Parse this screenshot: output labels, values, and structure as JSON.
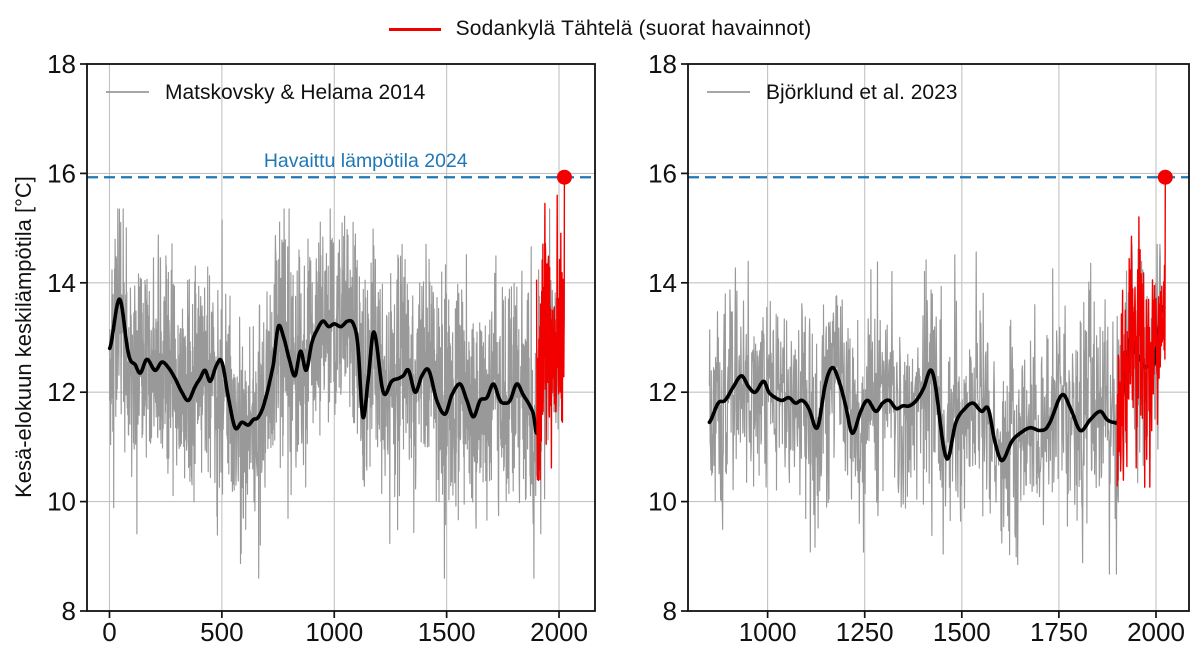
{
  "figure": {
    "top_legend": {
      "label": "Sodankylä Tähtelä (suorat havainnot)",
      "color": "#f20000"
    },
    "ylabel": "Kesä-elokuun keskilämpötila [°C]",
    "colors": {
      "observed_red": "#f20000",
      "threshold_blue": "#1f77b4",
      "reconstruction_gray": "#999999",
      "smoothed_black": "#000000",
      "grid": "#c3c3c3",
      "axis": "#111111"
    }
  },
  "chart_data": [
    {
      "type": "line",
      "panel": "left",
      "legend": "Matskovsky & Helama 2014",
      "xlim": [
        -100,
        2160
      ],
      "ylim": [
        8,
        18
      ],
      "xticks": [
        0,
        500,
        1000,
        1500,
        2000
      ],
      "yticks": [
        8,
        10,
        12,
        14,
        16,
        18
      ],
      "grid": true,
      "threshold_line": {
        "value": 15.93,
        "label": "Havaittu lämpötila 2024",
        "label_visible": true,
        "label_year": 1140
      },
      "observed_2024": {
        "year": 2024,
        "value": 15.93
      },
      "series": [
        {
          "name": "Matskovsky & Helama 2014 (annual)",
          "role": "recon-annual",
          "color": "#999999",
          "start": 1,
          "end": 2005,
          "noise_sd": 1.0,
          "clamp": [
            8.6,
            15.35
          ],
          "seed": 42,
          "trend_ref": "smoothed"
        },
        {
          "name": "smoothed 15-yr mean",
          "role": "smoothed",
          "color": "#000000",
          "anchors": [
            [
              1,
              12.8
            ],
            [
              45,
              13.7
            ],
            [
              85,
              12.7
            ],
            [
              115,
              12.5
            ],
            [
              137,
              12.35
            ],
            [
              166,
              12.6
            ],
            [
              203,
              12.4
            ],
            [
              233,
              12.55
            ],
            [
              262,
              12.45
            ],
            [
              292,
              12.25
            ],
            [
              322,
              12.0
            ],
            [
              351,
              11.85
            ],
            [
              381,
              12.1
            ],
            [
              403,
              12.25
            ],
            [
              425,
              12.4
            ],
            [
              448,
              12.2
            ],
            [
              477,
              12.5
            ],
            [
              500,
              12.55
            ],
            [
              529,
              11.9
            ],
            [
              559,
              11.35
            ],
            [
              589,
              11.45
            ],
            [
              618,
              11.4
            ],
            [
              640,
              11.5
            ],
            [
              663,
              11.55
            ],
            [
              692,
              11.85
            ],
            [
              729,
              12.5
            ],
            [
              751,
              13.2
            ],
            [
              775,
              13.0
            ],
            [
              800,
              12.6
            ],
            [
              825,
              12.3
            ],
            [
              850,
              12.75
            ],
            [
              875,
              12.4
            ],
            [
              900,
              12.9
            ],
            [
              925,
              13.15
            ],
            [
              950,
              13.3
            ],
            [
              975,
              13.2
            ],
            [
              1000,
              13.25
            ],
            [
              1030,
              13.2
            ],
            [
              1060,
              13.3
            ],
            [
              1085,
              13.25
            ],
            [
              1105,
              12.85
            ],
            [
              1127,
              11.55
            ],
            [
              1150,
              12.2
            ],
            [
              1176,
              13.1
            ],
            [
              1218,
              12.0
            ],
            [
              1256,
              12.2
            ],
            [
              1285,
              12.25
            ],
            [
              1307,
              12.3
            ],
            [
              1330,
              12.4
            ],
            [
              1360,
              12.0
            ],
            [
              1390,
              12.3
            ],
            [
              1420,
              12.4
            ],
            [
              1456,
              11.85
            ],
            [
              1493,
              11.6
            ],
            [
              1523,
              11.95
            ],
            [
              1560,
              12.15
            ],
            [
              1590,
              11.85
            ],
            [
              1619,
              11.55
            ],
            [
              1649,
              11.85
            ],
            [
              1679,
              11.9
            ],
            [
              1708,
              12.15
            ],
            [
              1738,
              11.85
            ],
            [
              1760,
              11.8
            ],
            [
              1782,
              11.85
            ],
            [
              1812,
              12.15
            ],
            [
              1841,
              11.95
            ],
            [
              1864,
              11.8
            ],
            [
              1886,
              11.6
            ],
            [
              1901,
              11.25
            ],
            [
              1914,
              11.7
            ],
            [
              1928,
              12.9
            ],
            [
              1940,
              13.25
            ],
            [
              1952,
              12.95
            ],
            [
              1970,
              12.5
            ],
            [
              1990,
              12.65
            ],
            [
              2005,
              12.75
            ]
          ]
        },
        {
          "name": "Sodankylä Tähtelä (suorat havainnot)",
          "role": "obs-annual",
          "color": "#f20000",
          "start": 1900,
          "end": 2024,
          "noise_sd": 1.0,
          "clamp": [
            9.65,
            15.6
          ],
          "seed": 7,
          "trend": [
            [
              1900,
              11.3
            ],
            [
              1908,
              11.4
            ],
            [
              1920,
              12.2
            ],
            [
              1930,
              12.9
            ],
            [
              1940,
              13.3
            ],
            [
              1950,
              13.1
            ],
            [
              1960,
              12.8
            ],
            [
              1972,
              12.5
            ],
            [
              1980,
              12.55
            ],
            [
              1990,
              12.7
            ],
            [
              2000,
              12.8
            ],
            [
              2010,
              12.95
            ],
            [
              2018,
              13.15
            ],
            [
              2024,
              13.4
            ]
          ],
          "forced": [
            [
              1937,
              15.45
            ],
            [
              2024,
              15.93
            ]
          ]
        }
      ]
    },
    {
      "type": "line",
      "panel": "right",
      "legend": "Björklund et al. 2023",
      "xlim": [
        795,
        2085
      ],
      "ylim": [
        8,
        18
      ],
      "xticks": [
        1000,
        1250,
        1500,
        1750,
        2000
      ],
      "yticks": [
        8,
        10,
        12,
        14,
        16,
        18
      ],
      "grid": true,
      "threshold_line": {
        "value": 15.93,
        "label": "Havaittu lämpötila 2024",
        "label_visible": false,
        "label_year": 1440
      },
      "observed_2024": {
        "year": 2024,
        "value": 15.93
      },
      "series": [
        {
          "name": "Björklund et al. 2023 (annual)",
          "role": "recon-annual",
          "color": "#999999",
          "start": 850,
          "end": 2012,
          "noise_sd": 0.98,
          "clamp": [
            8.15,
            14.7
          ],
          "seed": 1337,
          "trend_ref": "smoothed"
        },
        {
          "name": "smoothed 15-yr mean",
          "role": "smoothed",
          "color": "#000000",
          "anchors": [
            [
              850,
              11.45
            ],
            [
              873,
              11.8
            ],
            [
              890,
              11.85
            ],
            [
              912,
              12.1
            ],
            [
              933,
              12.3
            ],
            [
              951,
              12.1
            ],
            [
              968,
              12.0
            ],
            [
              990,
              12.2
            ],
            [
              1003,
              12.0
            ],
            [
              1020,
              11.9
            ],
            [
              1037,
              11.85
            ],
            [
              1055,
              11.9
            ],
            [
              1072,
              11.8
            ],
            [
              1089,
              11.85
            ],
            [
              1106,
              11.7
            ],
            [
              1128,
              11.35
            ],
            [
              1149,
              12.15
            ],
            [
              1167,
              12.45
            ],
            [
              1184,
              12.2
            ],
            [
              1201,
              11.75
            ],
            [
              1218,
              11.25
            ],
            [
              1240,
              11.65
            ],
            [
              1257,
              11.85
            ],
            [
              1279,
              11.65
            ],
            [
              1296,
              11.8
            ],
            [
              1313,
              11.85
            ],
            [
              1331,
              11.7
            ],
            [
              1348,
              11.75
            ],
            [
              1365,
              11.75
            ],
            [
              1383,
              11.85
            ],
            [
              1400,
              12.05
            ],
            [
              1425,
              12.35
            ],
            [
              1460,
              10.8
            ],
            [
              1485,
              11.45
            ],
            [
              1508,
              11.7
            ],
            [
              1529,
              11.8
            ],
            [
              1551,
              11.65
            ],
            [
              1568,
              11.7
            ],
            [
              1585,
              11.1
            ],
            [
              1603,
              10.75
            ],
            [
              1629,
              11.1
            ],
            [
              1650,
              11.25
            ],
            [
              1676,
              11.35
            ],
            [
              1702,
              11.3
            ],
            [
              1723,
              11.4
            ],
            [
              1758,
              11.95
            ],
            [
              1780,
              11.7
            ],
            [
              1805,
              11.3
            ],
            [
              1831,
              11.5
            ],
            [
              1857,
              11.65
            ],
            [
              1874,
              11.5
            ],
            [
              1891,
              11.45
            ],
            [
              1904,
              11.5
            ],
            [
              1917,
              12.1
            ],
            [
              1934,
              13.0
            ],
            [
              1947,
              12.75
            ],
            [
              1960,
              12.6
            ],
            [
              1973,
              12.45
            ],
            [
              1986,
              12.55
            ],
            [
              1994,
              12.5
            ],
            [
              2003,
              12.9
            ],
            [
              2014,
              13.5
            ],
            [
              2020,
              13.55
            ]
          ]
        },
        {
          "name": "Sodankylä Tähtelä (suorat havainnot)",
          "role": "obs-annual",
          "color": "#f20000",
          "start": 1900,
          "end": 2024,
          "noise_sd": 1.0,
          "clamp": [
            9.7,
            15.5
          ],
          "seed": 21,
          "trend": [
            [
              1900,
              11.5
            ],
            [
              1917,
              12.1
            ],
            [
              1934,
              13.0
            ],
            [
              1947,
              12.75
            ],
            [
              1960,
              12.6
            ],
            [
              1973,
              12.45
            ],
            [
              1986,
              12.55
            ],
            [
              2000,
              12.85
            ],
            [
              2014,
              13.5
            ],
            [
              2024,
              13.6
            ]
          ],
          "forced": [
            [
              1937,
              14.85
            ],
            [
              2024,
              15.93
            ]
          ]
        }
      ]
    }
  ]
}
